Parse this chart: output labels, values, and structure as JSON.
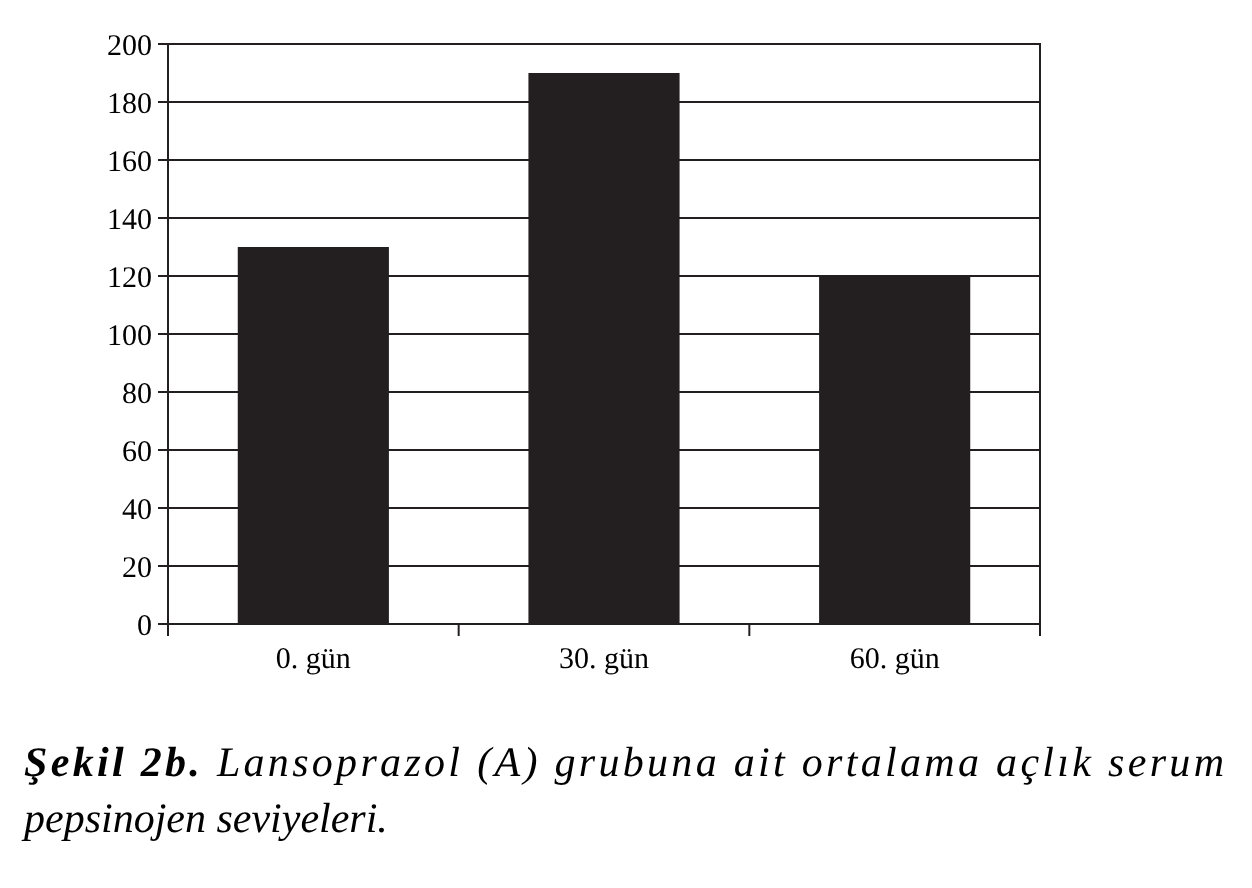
{
  "chart_data": {
    "type": "bar",
    "categories": [
      "0. gün",
      "30. gün",
      "60. gün"
    ],
    "values": [
      130,
      190,
      120
    ],
    "color": "#231f20",
    "ylim": [
      0,
      200
    ],
    "yticks": [
      0,
      20,
      40,
      60,
      80,
      100,
      120,
      140,
      160,
      180,
      200
    ],
    "grid": "y",
    "annotations": [
      "Şekil 2b.",
      "Lansoprazol (A) grubuna ait ortalama açlık serum pepsinojen seviyeleri."
    ]
  }
}
